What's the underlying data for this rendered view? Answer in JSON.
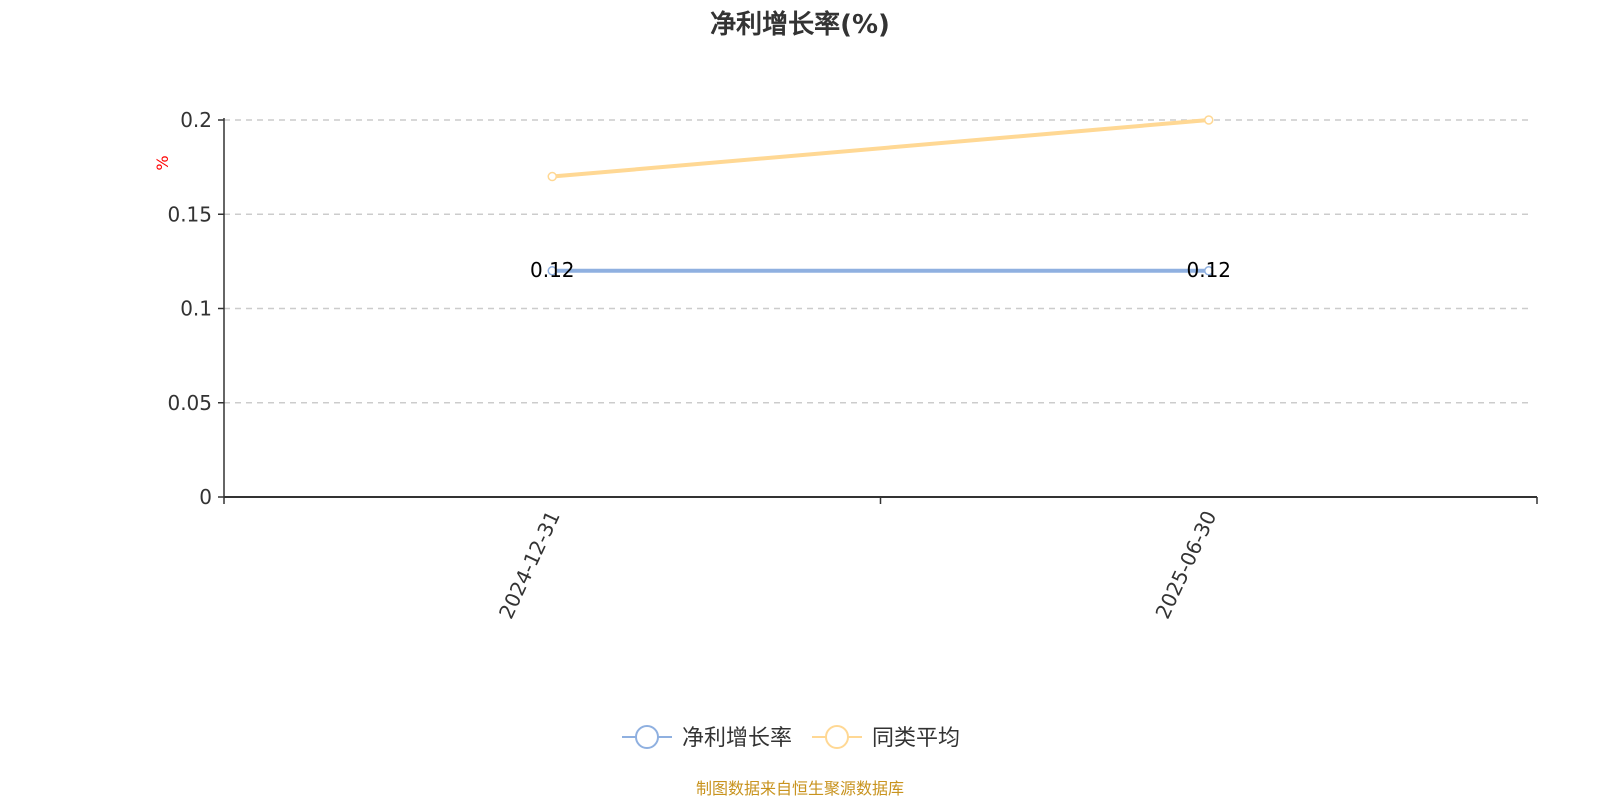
{
  "chart_data": {
    "type": "line",
    "title": "净利增长率(%)",
    "ylabel": "%",
    "xlabel": "",
    "categories": [
      "2024-12-31",
      "2025-06-30"
    ],
    "ylim": [
      0,
      0.2
    ],
    "yticks": [
      "0",
      "0.05",
      "0.1",
      "0.15",
      "0.2"
    ],
    "grid": true,
    "legend_position": "bottom",
    "series": [
      {
        "name": "净利增长率",
        "values": [
          0.12,
          0.12
        ],
        "color": "#8fb0e0",
        "labels": [
          "0.12",
          "0.12"
        ]
      },
      {
        "name": "同类平均",
        "values": [
          0.17,
          0.2
        ],
        "color": "#ffd894"
      }
    ]
  },
  "source_note": "制图数据来自恒生聚源数据库",
  "colors": {
    "ylabel": "#ff0000",
    "source": "#c8931e"
  }
}
